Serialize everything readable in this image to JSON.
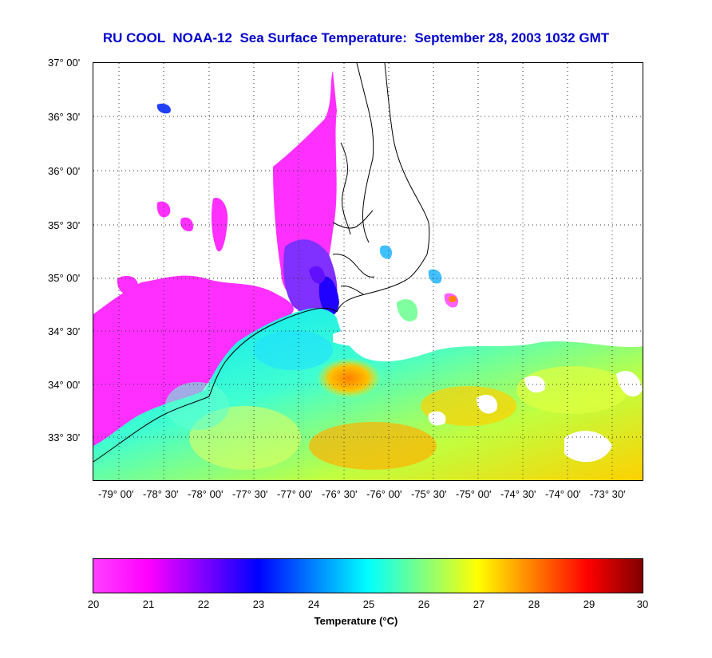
{
  "title": "RU COOL  NOAA-12  Sea Surface Temperature:  September 28, 2003 1032 GMT",
  "title_color": "#0000cc",
  "latitude_labels": [
    "37° 00'",
    "36° 30'",
    "36° 00'",
    "35° 30'",
    "35° 00'",
    "34° 30'",
    "34° 00'",
    "33° 30'"
  ],
  "longitude_labels": [
    "-79° 00'",
    "-78° 30'",
    "-78° 00'",
    "-77° 30'",
    "-77° 00'",
    "-76° 30'",
    "-76° 00'",
    "-75° 30'",
    "-75° 00'",
    "-74° 30'",
    "-74° 00'",
    "-73° 30'"
  ],
  "colorbar": {
    "ticks": [
      "20",
      "21",
      "22",
      "23",
      "24",
      "25",
      "26",
      "27",
      "28",
      "29",
      "30"
    ],
    "label": "Temperature (°C)",
    "colors": [
      "#ff40ff",
      "#ff00ff",
      "#8000ff",
      "#0000ff",
      "#0080ff",
      "#00ffff",
      "#80ff80",
      "#ffff00",
      "#ff8000",
      "#ff0000",
      "#800000"
    ]
  }
}
